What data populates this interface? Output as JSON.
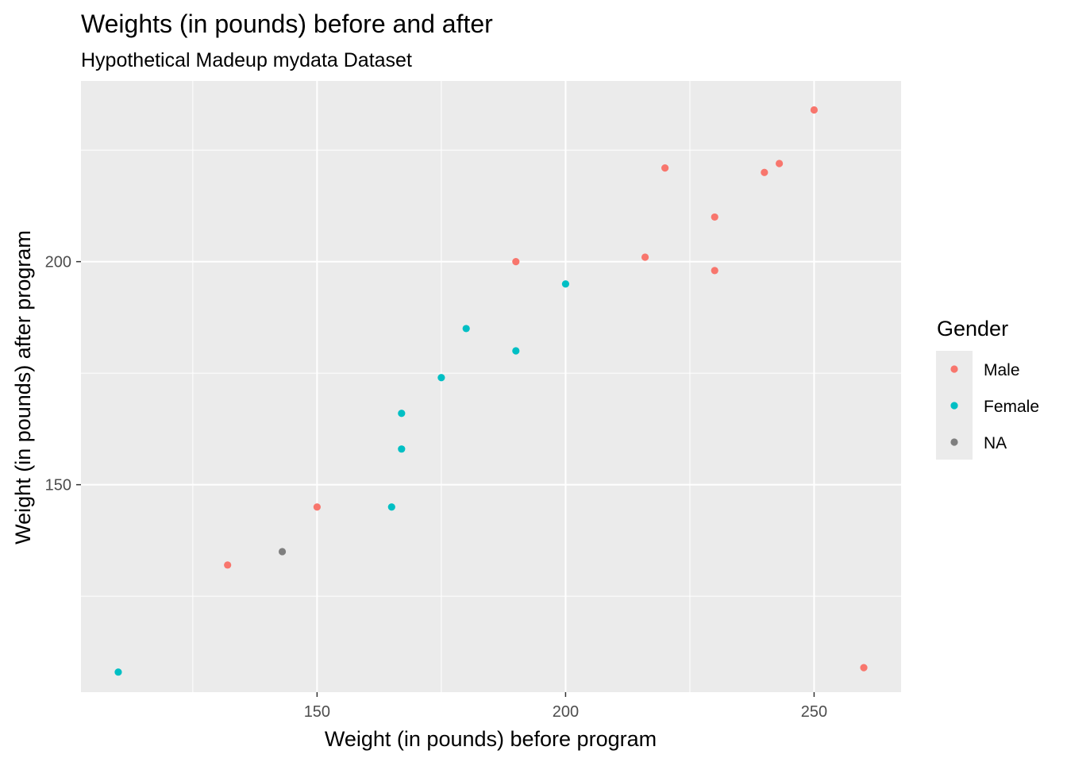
{
  "chart_data": {
    "type": "scatter",
    "title": "Weights (in pounds) before and after",
    "subtitle": "Hypothetical Madeup mydata Dataset",
    "xlabel": "Weight (in pounds) before program",
    "ylabel": "Weight (in pounds) after program",
    "xlim": [
      102.5,
      267.5
    ],
    "ylim": [
      103.5,
      240.5
    ],
    "x_ticks": [
      150,
      200,
      250
    ],
    "y_ticks": [
      150,
      200
    ],
    "grid": true,
    "legend": {
      "title": "Gender",
      "position": "right"
    },
    "series": [
      {
        "name": "Male",
        "color": "#F8766D",
        "points": [
          [
            132,
            132
          ],
          [
            150,
            145
          ],
          [
            190,
            200
          ],
          [
            216,
            201
          ],
          [
            220,
            221
          ],
          [
            230,
            198
          ],
          [
            230,
            210
          ],
          [
            240,
            220
          ],
          [
            243,
            222
          ],
          [
            250,
            234
          ],
          [
            260,
            109
          ]
        ]
      },
      {
        "name": "Female",
        "color": "#00BFC4",
        "points": [
          [
            110,
            108
          ],
          [
            165,
            145
          ],
          [
            167,
            158
          ],
          [
            167,
            166
          ],
          [
            175,
            174
          ],
          [
            180,
            185
          ],
          [
            190,
            180
          ],
          [
            200,
            195
          ]
        ]
      },
      {
        "name": "NA",
        "color": "#7F7F7F",
        "points": [
          [
            143,
            135
          ]
        ]
      }
    ]
  }
}
